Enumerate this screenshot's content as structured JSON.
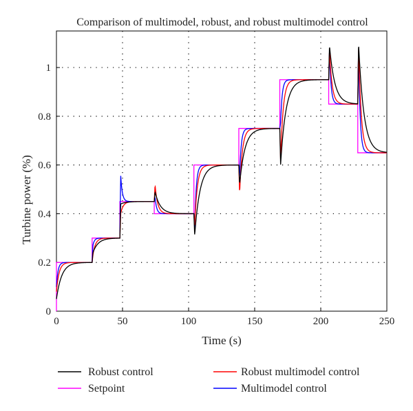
{
  "chart_data": {
    "type": "line",
    "title": "Comparison of multimodel, robust, and robust multimodel control",
    "xlabel": "Time (s)",
    "ylabel": "Turbine power (%)",
    "xlim": [
      0,
      250
    ],
    "ylim": [
      0,
      1.15
    ],
    "xticks": [
      0,
      50,
      100,
      150,
      200,
      250
    ],
    "yticks": [
      0,
      0.2,
      0.4,
      0.6,
      0.8,
      1
    ],
    "xtick_labels": [
      "0",
      "50",
      "100",
      "150",
      "200",
      "250"
    ],
    "ytick_labels": [
      "0",
      "0.2",
      "0.4",
      "0.6",
      "0.8",
      "1"
    ],
    "grid": true,
    "legend_position": "bottom",
    "setpoint_steps": [
      {
        "t": 0,
        "value": 0.2
      },
      {
        "t": 27,
        "value": 0.3
      },
      {
        "t": 48,
        "value": 0.45
      },
      {
        "t": 74,
        "value": 0.4
      },
      {
        "t": 104,
        "value": 0.6
      },
      {
        "t": 138,
        "value": 0.75
      },
      {
        "t": 169,
        "value": 0.95
      },
      {
        "t": 206,
        "value": 0.85
      },
      {
        "t": 228,
        "value": 0.65
      }
    ],
    "end_time": 250,
    "series": [
      {
        "name": "Robust control",
        "color": "#000000",
        "tau": 4.0,
        "start_value": 0.05,
        "spike_values": [
          0.24,
          0.44,
          0.49,
          0.31,
          0.52,
          0.6,
          1.09,
          1.1
        ]
      },
      {
        "name": "Setpoint",
        "color": "#ff00ff"
      },
      {
        "name": "Robust multimodel control",
        "color": "#ff0000",
        "tau": 2.0,
        "start_value": 0.08,
        "spike_values": [
          0.23,
          0.4,
          0.52,
          0.35,
          0.48,
          0.62,
          1.07,
          1.09
        ]
      },
      {
        "name": "Multimodel control",
        "color": "#0000ff",
        "tau": 1.2,
        "start_value": 0.1,
        "spike_values": [
          0.27,
          0.56,
          0.47,
          0.34,
          0.55,
          0.77,
          1.07,
          1.08
        ]
      }
    ]
  }
}
